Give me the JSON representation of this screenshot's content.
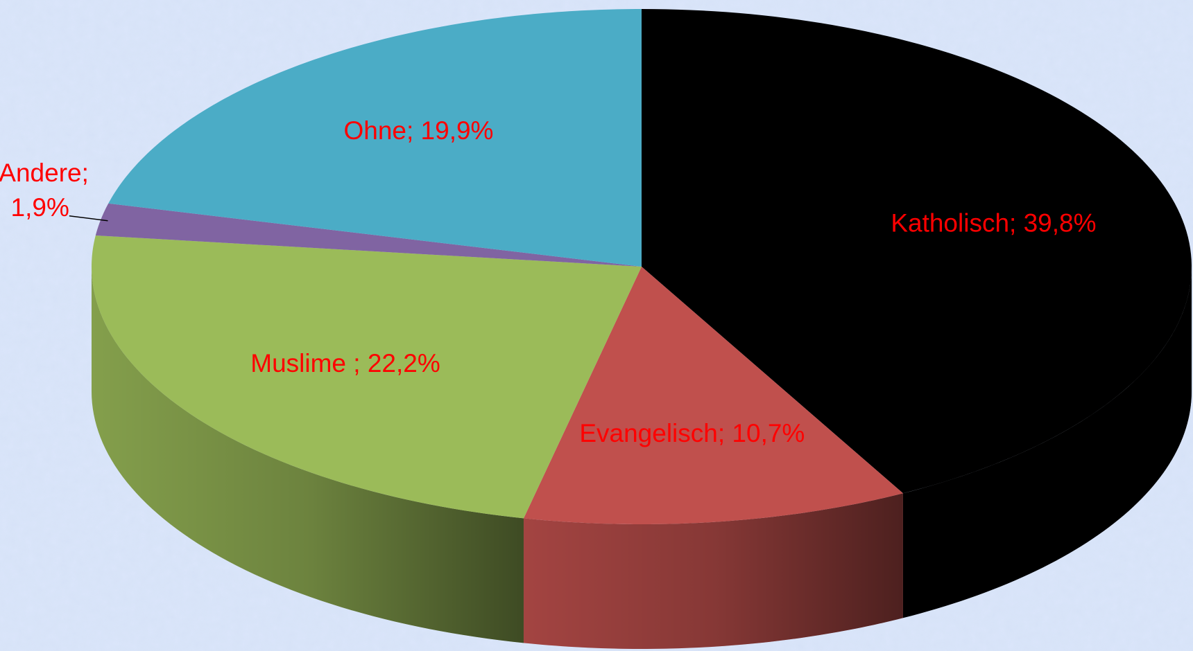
{
  "chart_data": {
    "type": "pie3d",
    "values": [
      39.8,
      10.7,
      22.2,
      1.9,
      19.9
    ],
    "value_labels": [
      "Katholisch; 39,8%",
      "Evangelisch; 10,7%",
      "Muslime ; 22,2%",
      "Andere; 1,9%",
      "Ohne; 19,9%"
    ],
    "colors": [
      "#000000",
      "#c0504d",
      "#9bbb59",
      "#8064a2",
      "#4bacc6"
    ],
    "label_color": "#ff0000"
  }
}
